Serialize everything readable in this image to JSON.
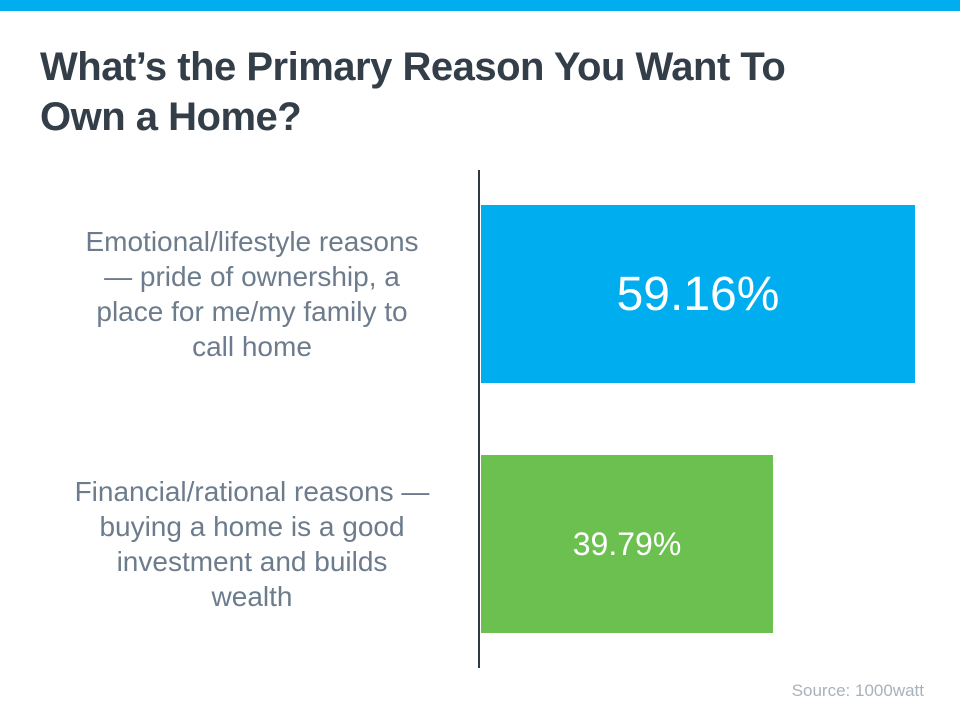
{
  "slide": {
    "title_lines": [
      "What’s the Primary Reason You Want To",
      "Own a Home?"
    ],
    "source": "Source: 1000watt"
  },
  "colors": {
    "accent_strip": "#00AEEF",
    "title_text": "#333E48",
    "category_label_text": "#6D7C8D",
    "axis_line": "#2E3941",
    "bar_value_text": "#FFFFFF",
    "source_text": "#A8B2BC"
  },
  "chart_data": {
    "type": "bar",
    "orientation": "horizontal",
    "title": "What’s the Primary Reason You Want To Own a Home?",
    "categories": [
      "Emotional/lifestyle reasons — pride of ownership, a place for me/my family to call home",
      "Financial/rational reasons — buying a home is a good investment and builds wealth"
    ],
    "category_label_lines": [
      [
        "Emotional/lifestyle reasons",
        "— pride of ownership, a",
        "place for me/my family to",
        "call home"
      ],
      [
        "Financial/rational reasons —",
        "buying a home is a good",
        "investment and builds",
        "wealth"
      ]
    ],
    "values": [
      59.16,
      39.79
    ],
    "value_labels": [
      "59.16%",
      "39.79%"
    ],
    "bar_colors": [
      "#00AEEF",
      "#6CC04F"
    ],
    "xlim": [
      0,
      100
    ],
    "grid": false,
    "legend": false,
    "source": "Source: 1000watt"
  }
}
